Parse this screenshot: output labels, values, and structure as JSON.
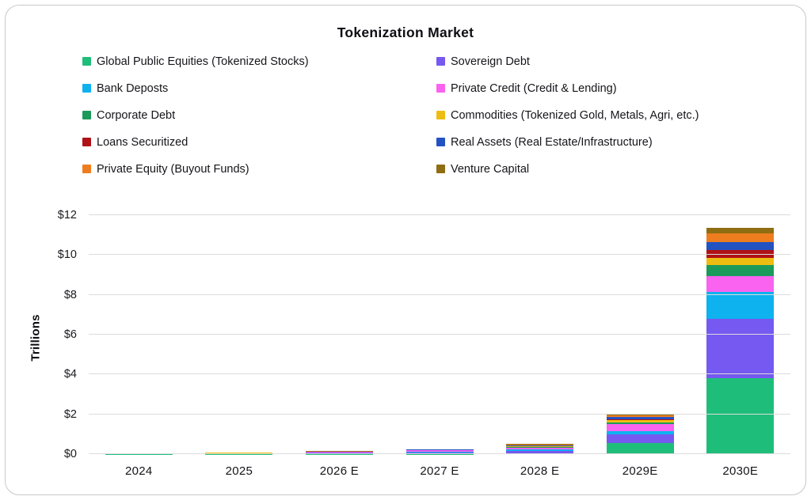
{
  "title": "Tokenization Market",
  "chart_data": {
    "type": "bar",
    "stacked": true,
    "title": "Tokenization Market",
    "ylabel": "Trillions",
    "ylim": [
      0,
      12
    ],
    "yticks": [
      0,
      2,
      4,
      6,
      8,
      10,
      12
    ],
    "ytick_labels": [
      "$0",
      "$2",
      "$4",
      "$6",
      "$8",
      "$10",
      "$12"
    ],
    "grid": true,
    "legend_position": "top, two columns",
    "units": "USD trillions",
    "categories": [
      "2024",
      "2025",
      "2026 E",
      "2027 E",
      "2028 E",
      "2029E",
      "2030E"
    ],
    "series": [
      {
        "name": "Global Public Equities (Tokenized Stocks)",
        "color": "#1ebe7a",
        "values": [
          0.01,
          0.01,
          0.02,
          0.02,
          0.04,
          0.55,
          3.8
        ]
      },
      {
        "name": "Sovereign Debt",
        "color": "#7559f0",
        "values": [
          0.01,
          0.02,
          0.06,
          0.08,
          0.12,
          0.45,
          3.0
        ]
      },
      {
        "name": "Bank Deposts",
        "color": "#0db2ef",
        "values": [
          0.0,
          0.01,
          0.01,
          0.02,
          0.06,
          0.15,
          1.35
        ]
      },
      {
        "name": "Private Credit (Credit & Lending)",
        "color": "#f963ef",
        "values": [
          0.01,
          0.01,
          0.02,
          0.07,
          0.11,
          0.35,
          0.8
        ]
      },
      {
        "name": "Corporate Debt",
        "color": "#1c9a5b",
        "values": [
          0.0,
          0.01,
          0.01,
          0.01,
          0.02,
          0.08,
          0.55
        ]
      },
      {
        "name": "Commodities (Tokenized Gold, Metals, Agri, etc.)",
        "color": "#eebd12",
        "values": [
          0.01,
          0.01,
          0.01,
          0.01,
          0.03,
          0.13,
          0.35
        ]
      },
      {
        "name": "Loans Securitized",
        "color": "#b01217",
        "values": [
          0.0,
          0.0,
          0.0,
          0.01,
          0.02,
          0.06,
          0.4
        ]
      },
      {
        "name": "Real Assets (Real Estate/Infrastructure)",
        "color": "#2353c3",
        "values": [
          0.0,
          0.01,
          0.01,
          0.01,
          0.04,
          0.12,
          0.4
        ]
      },
      {
        "name": "Private Equity (Buyout Funds)",
        "color": "#ee7d1f",
        "values": [
          0.0,
          0.0,
          0.0,
          0.01,
          0.04,
          0.08,
          0.45
        ]
      },
      {
        "name": "Venture Capital",
        "color": "#8f6d12",
        "values": [
          0.01,
          0.01,
          0.01,
          0.01,
          0.03,
          0.05,
          0.25
        ]
      }
    ]
  }
}
